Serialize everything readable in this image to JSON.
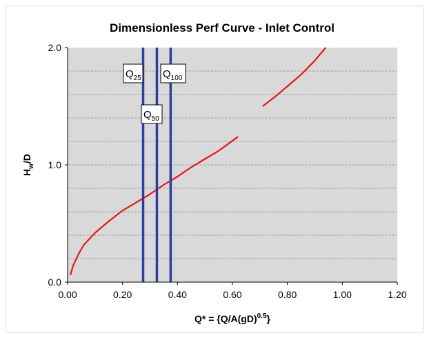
{
  "chart_data": {
    "type": "line",
    "title": "Dimensionless Perf Curve - Inlet Control",
    "xlabel": {
      "main": "Q* = {Q/A(gD)",
      "sup": "0.5",
      "tail": "}"
    },
    "ylabel": {
      "main": "H",
      "sub": "w",
      "tail": "/D"
    },
    "xlim": [
      0,
      1.2
    ],
    "ylim": [
      0,
      2.0
    ],
    "x_ticks": [
      0,
      0.2,
      0.4,
      0.6,
      0.8,
      1.0,
      1.2
    ],
    "x_tick_labels": [
      "0.00",
      "0.20",
      "0.40",
      "0.60",
      "0.80",
      "1.00",
      "1.20"
    ],
    "y_ticks": [
      0,
      1.0,
      2.0
    ],
    "y_tick_labels": [
      "0.0",
      "1.0",
      "2.0"
    ],
    "grid": true,
    "plot_background": "#d9d9d9",
    "curve_color": "#e8141c",
    "line_color": "#2e3d9c",
    "series": [
      {
        "values_x": [
          0.01,
          0.02,
          0.04,
          0.06,
          0.1,
          0.15,
          0.2,
          0.25,
          0.3,
          0.35,
          0.4,
          0.45,
          0.5,
          0.55,
          0.62
        ],
        "values_y": [
          0.06,
          0.14,
          0.24,
          0.32,
          0.42,
          0.52,
          0.61,
          0.68,
          0.75,
          0.83,
          0.9,
          0.98,
          1.05,
          1.12,
          1.24
        ]
      },
      {
        "values_x": [
          0.71,
          0.76,
          0.8,
          0.85,
          0.9,
          0.94
        ],
        "values_y": [
          1.5,
          1.59,
          1.67,
          1.77,
          1.89,
          2.0
        ]
      }
    ],
    "vertical_lines": [
      {
        "x": 0.275,
        "label": "Q",
        "sub": "25"
      },
      {
        "x": 0.325,
        "label": "Q",
        "sub": "50"
      },
      {
        "x": 0.375,
        "label": "Q",
        "sub": "100"
      }
    ]
  }
}
